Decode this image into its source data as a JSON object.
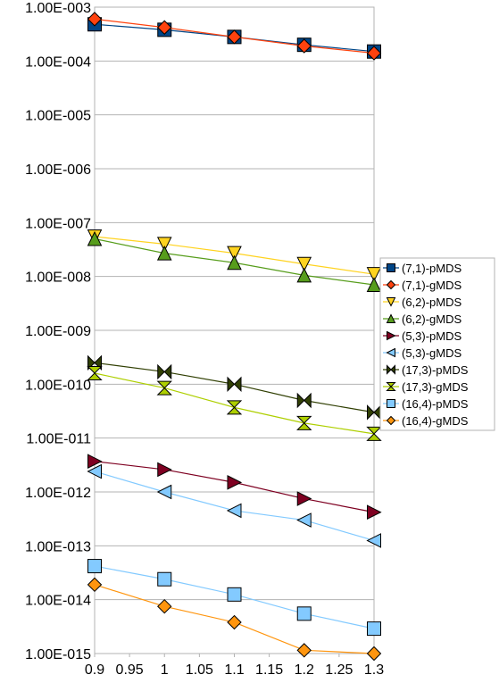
{
  "chart_data": {
    "type": "line",
    "title": "",
    "xlabel": "",
    "ylabel": "",
    "y_scale": "log",
    "xlim": [
      0.9,
      1.3
    ],
    "ylim": [
      1e-15,
      0.001
    ],
    "grid": "horizontal",
    "legend_position": "right",
    "x_ticks": [
      "0.9",
      "0.95",
      "1",
      "1.05",
      "1.1",
      "1.15",
      "1.2",
      "1.25",
      "1.3"
    ],
    "y_ticks": [
      "1.00E-003",
      "1.00E-004",
      "1.00E-005",
      "1.00E-006",
      "1.00E-007",
      "1.00E-008",
      "1.00E-009",
      "1.00E-010",
      "1.00E-011",
      "1.00E-012",
      "1.00E-013",
      "1.00E-014",
      "1.00E-015"
    ],
    "x": [
      0.9,
      1.0,
      1.1,
      1.2,
      1.3
    ],
    "series": [
      {
        "name": "(7,1)-pMDS",
        "color": "#004586",
        "marker": "square",
        "values": [
          0.00048,
          0.00038,
          0.00028,
          0.0002,
          0.00015
        ]
      },
      {
        "name": "(7,1)-gMDS",
        "color": "#ff420e",
        "marker": "diamond",
        "values": [
          0.0006,
          0.00042,
          0.00028,
          0.00019,
          0.00014
        ]
      },
      {
        "name": "(6,2)-pMDS",
        "color": "#ffd320",
        "marker": "triangle-down",
        "values": [
          5.5e-08,
          4e-08,
          2.7e-08,
          1.7e-08,
          1.1e-08
        ]
      },
      {
        "name": "(6,2)-gMDS",
        "color": "#579d1c",
        "marker": "triangle-up",
        "values": [
          5e-08,
          2.7e-08,
          1.8e-08,
          1.05e-08,
          7e-09
        ]
      },
      {
        "name": "(5,3)-pMDS",
        "color": "#7e0021",
        "marker": "triangle-right",
        "values": [
          3.7e-12,
          2.6e-12,
          1.5e-12,
          7.5e-13,
          4.2e-13
        ]
      },
      {
        "name": "(5,3)-gMDS",
        "color": "#83caff",
        "marker": "triangle-left",
        "values": [
          2.4e-12,
          1e-12,
          4.5e-13,
          3e-13,
          1.25e-13
        ]
      },
      {
        "name": "(17,3)-pMDS",
        "color": "#314004",
        "marker": "bowtie",
        "values": [
          2.5e-10,
          1.7e-10,
          1e-10,
          5e-11,
          3e-11
        ]
      },
      {
        "name": "(17,3)-gMDS",
        "color": "#aecf00",
        "marker": "hourglass",
        "values": [
          1.6e-10,
          8.5e-11,
          3.7e-11,
          1.9e-11,
          1.2e-11
        ]
      },
      {
        "name": "(16,4)-pMDS",
        "color": "#4b1f6f",
        "fill": "#83caff",
        "line": "#83caff",
        "marker": "square-light",
        "values": [
          4.2e-14,
          2.4e-14,
          1.25e-14,
          5.5e-15,
          2.9e-15
        ]
      },
      {
        "name": "(16,4)-gMDS",
        "color": "#ff950e",
        "marker": "diamond",
        "values": [
          1.9e-14,
          7.5e-15,
          3.8e-15,
          1.15e-15,
          1e-15
        ]
      }
    ]
  }
}
